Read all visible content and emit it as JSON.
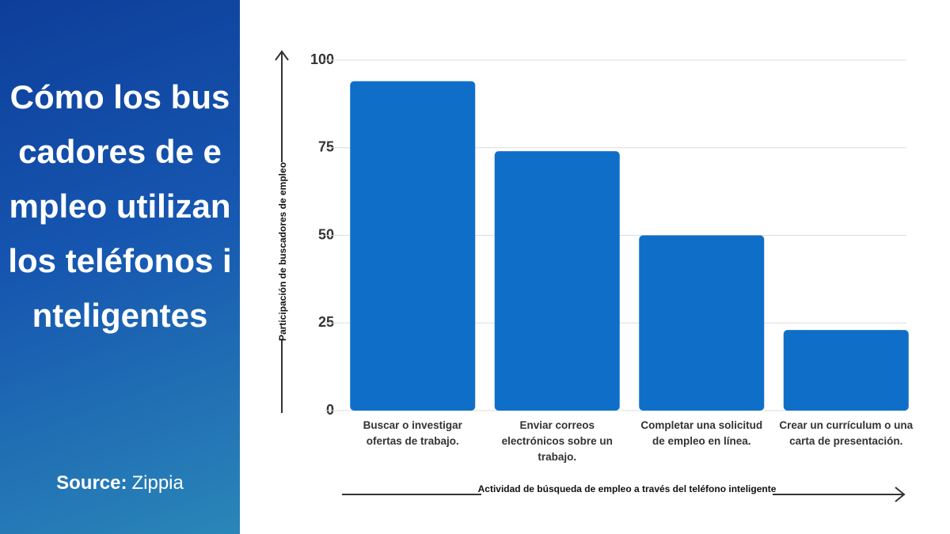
{
  "chart_data": {
    "type": "bar",
    "title": "Cómo los buscadores de empleo utilizan los teléfonos inteligentes",
    "categories": [
      "Buscar o investigar ofertas de trabajo.",
      "Enviar correos electrónicos sobre un trabajo.",
      "Completar una solicitud de empleo en línea.",
      "Crear un currículum o una carta de presentación."
    ],
    "values": [
      94,
      74,
      50,
      23
    ],
    "color": "#0f6fc8",
    "ylim": [
      0,
      100
    ],
    "yticks": [
      0,
      25,
      50,
      75,
      100
    ],
    "grid": true,
    "x_label": "Actividad de búsqueda de empleo a través del teléfono inteligente",
    "y_label": "Participación de buscadores de empleo"
  },
  "source": {
    "label": "Source:",
    "name": "Zippia"
  }
}
